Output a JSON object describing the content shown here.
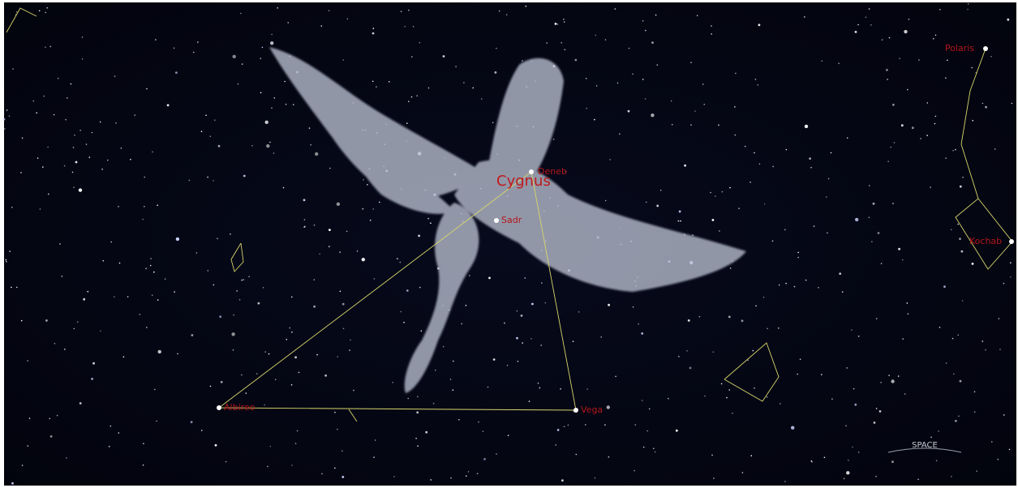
{
  "constellation": {
    "name": "Cygnus"
  },
  "stars": [
    {
      "label": "Deneb"
    },
    {
      "label": "Sadr"
    },
    {
      "label": "Albireo"
    },
    {
      "label": "Vega"
    },
    {
      "label": "Polaris"
    },
    {
      "label": "Kochab"
    }
  ],
  "horizon": {
    "label": "SPACE"
  }
}
